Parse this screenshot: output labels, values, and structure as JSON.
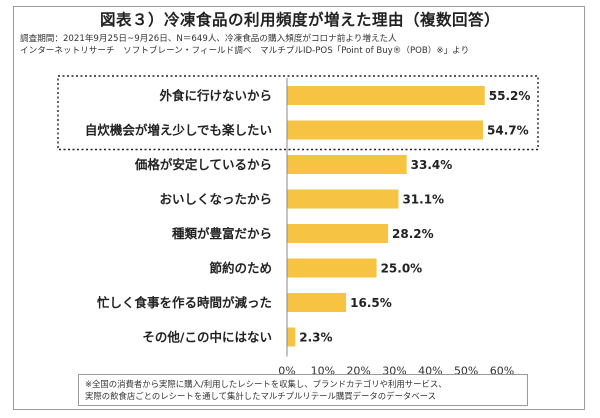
{
  "header": {
    "title": "図表３）冷凍食品の利用頻度が増えた理由（複数回答）",
    "survey_line1": "調査期間：2021年9月25日~9月26日、N＝649人、冷凍食品の購入頻度がコロナ前より増えた人",
    "survey_line2": "インターネットリサーチ　ソフトブレーン・フィールド調べ　マルチプルID-POS「Point of Buy®（POB）※」より"
  },
  "footnote": {
    "line1": "※全国の消費者から実際に購入/利用したレシートを収集し、ブランドカテゴリや利用サービス、",
    "line2": "実際の飲食店ごとのレシートを通して集計したマルチプルリテール購買データのデータベース"
  },
  "colors": {
    "bar": "#f7c343",
    "axis": "#888888",
    "text": "#222222"
  },
  "chart_data": {
    "type": "bar",
    "orientation": "horizontal",
    "title": "図表３）冷凍食品の利用頻度が増えた理由（複数回答）",
    "categories": [
      "外食に行けないから",
      "自炊機会が増え少しでも楽したい",
      "価格が安定しているから",
      "おいしくなったから",
      "種類が豊富だから",
      "節約のため",
      "忙しく食事を作る時間が減った",
      "その他/この中にはない"
    ],
    "values": [
      55.2,
      54.7,
      33.4,
      31.1,
      28.2,
      25.0,
      16.5,
      2.3
    ],
    "value_labels": [
      "55.2%",
      "54.7%",
      "33.4%",
      "31.1%",
      "28.2%",
      "25.0%",
      "16.5%",
      "2.3%"
    ],
    "xlim": [
      0,
      60
    ],
    "xticks": [
      0,
      10,
      20,
      30,
      40,
      50,
      60
    ],
    "xtick_labels": [
      "0%",
      "10%",
      "20%",
      "30%",
      "40%",
      "50%",
      "60%"
    ],
    "highlighted_categories": [
      "外食に行けないから",
      "自炊機会が増え少しでも楽したい"
    ],
    "xlabel": "",
    "ylabel": ""
  }
}
